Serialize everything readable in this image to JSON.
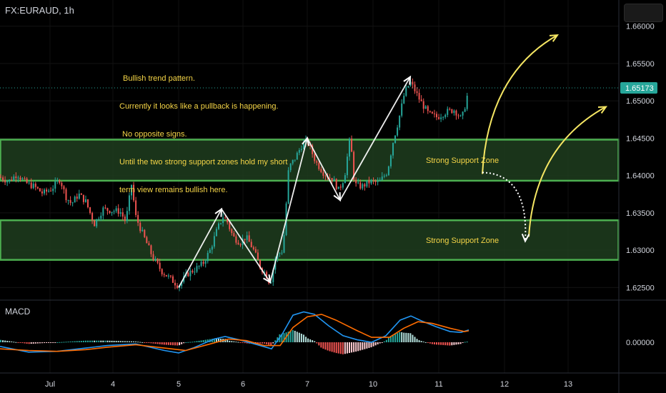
{
  "header": {
    "symbol": "FX:EURAUD, 1h"
  },
  "annotation": {
    "lines": [
      "Bullish trend pattern.",
      "Currently it looks like a pullback is happening.",
      "No opposite signs.",
      "Until the two strong support zones hold my short",
      "term view remains bullish here."
    ]
  },
  "chart_data": {
    "type": "candlestick",
    "symbol": "FX:EURAUD",
    "interval": "1h",
    "price_axis": {
      "ticks": [
        "1.66000",
        "1.65500",
        "1.65000",
        "1.64500",
        "1.64000",
        "1.63500",
        "1.63000",
        "1.62500"
      ],
      "range": [
        1.6235,
        1.6635
      ]
    },
    "last_price": "1.65173",
    "time_axis": {
      "labels": [
        "Jul",
        "4",
        "5",
        "6",
        "7",
        "10",
        "11",
        "12",
        "13"
      ]
    },
    "support_zones": [
      {
        "label": "Strong Support Zone",
        "from": 1.6393,
        "to": 1.6448
      },
      {
        "label": "Strong Support Zone",
        "from": 1.6287,
        "to": 1.634
      }
    ],
    "price_path": [
      [
        0,
        1.6398
      ],
      [
        12,
        1.6392
      ],
      [
        24,
        1.6402
      ],
      [
        36,
        1.639
      ],
      [
        48,
        1.6385
      ],
      [
        60,
        1.6376
      ],
      [
        72,
        1.6382
      ],
      [
        84,
        1.6395
      ],
      [
        92,
        1.6372
      ],
      [
        100,
        1.6362
      ],
      [
        110,
        1.6375
      ],
      [
        120,
        1.6365
      ],
      [
        132,
        1.6335
      ],
      [
        144,
        1.6355
      ],
      [
        156,
        1.6353
      ],
      [
        168,
        1.6352
      ],
      [
        176,
        1.6338
      ],
      [
        184,
        1.6388
      ],
      [
        190,
        1.6345
      ],
      [
        196,
        1.633
      ],
      [
        204,
        1.6312
      ],
      [
        214,
        1.629
      ],
      [
        226,
        1.6272
      ],
      [
        238,
        1.6262
      ],
      [
        250,
        1.6252
      ],
      [
        262,
        1.6268
      ],
      [
        274,
        1.6275
      ],
      [
        284,
        1.6282
      ],
      [
        294,
        1.63
      ],
      [
        304,
        1.6328
      ],
      [
        312,
        1.6345
      ],
      [
        318,
        1.6338
      ],
      [
        326,
        1.6318
      ],
      [
        336,
        1.631
      ],
      [
        344,
        1.6318
      ],
      [
        354,
        1.6302
      ],
      [
        364,
        1.6278
      ],
      [
        372,
        1.6268
      ],
      [
        378,
        1.6255
      ],
      [
        386,
        1.6292
      ],
      [
        396,
        1.63
      ],
      [
        404,
        1.641
      ],
      [
        414,
        1.6425
      ],
      [
        422,
        1.644
      ],
      [
        430,
        1.6446
      ],
      [
        442,
        1.6418
      ],
      [
        454,
        1.6402
      ],
      [
        466,
        1.6395
      ],
      [
        474,
        1.638
      ],
      [
        482,
        1.6398
      ],
      [
        490,
        1.6452
      ],
      [
        496,
        1.6388
      ],
      [
        506,
        1.6385
      ],
      [
        518,
        1.6392
      ],
      [
        530,
        1.639
      ],
      [
        542,
        1.6405
      ],
      [
        550,
        1.6445
      ],
      [
        558,
        1.6475
      ],
      [
        566,
        1.651
      ],
      [
        574,
        1.6525
      ],
      [
        580,
        1.6515
      ],
      [
        588,
        1.65
      ],
      [
        600,
        1.6482
      ],
      [
        612,
        1.6478
      ],
      [
        624,
        1.6485
      ],
      [
        636,
        1.6488
      ],
      [
        646,
        1.6475
      ],
      [
        652,
        1.6498
      ],
      [
        656,
        1.6517
      ]
    ],
    "zigzag": [
      [
        250,
        1.625
      ],
      [
        310,
        1.6355
      ],
      [
        378,
        1.6257
      ],
      [
        430,
        1.645
      ],
      [
        476,
        1.6367
      ],
      [
        574,
        1.6532
      ]
    ],
    "projection_arrows": [
      {
        "style": "solid",
        "from": [
          675,
          1.6402
        ],
        "to": [
          780,
          1.6588
        ]
      },
      {
        "style": "solid",
        "from": [
          740,
          1.6318
        ],
        "to": [
          848,
          1.6492
        ]
      },
      {
        "style": "dotted",
        "from": [
          675,
          1.6404
        ],
        "to": [
          735,
          1.6312
        ]
      }
    ],
    "macd": {
      "label": "MACD",
      "zero_label": "0.00000",
      "macd_line": [
        [
          0,
          -0.0005
        ],
        [
          40,
          -0.0012
        ],
        [
          80,
          -0.0011
        ],
        [
          120,
          -0.0007
        ],
        [
          150,
          -0.0004
        ],
        [
          190,
          -0.0002
        ],
        [
          230,
          -0.001
        ],
        [
          250,
          -0.0013
        ],
        [
          270,
          -0.0007
        ],
        [
          300,
          0.0004
        ],
        [
          315,
          0.0007
        ],
        [
          335,
          0.0003
        ],
        [
          360,
          -0.0003
        ],
        [
          380,
          -0.0008
        ],
        [
          395,
          0.001
        ],
        [
          410,
          0.0033
        ],
        [
          425,
          0.0037
        ],
        [
          440,
          0.0034
        ],
        [
          460,
          0.002
        ],
        [
          480,
          0.0008
        ],
        [
          500,
          0.0003
        ],
        [
          520,
          0.0
        ],
        [
          540,
          0.0008
        ],
        [
          560,
          0.0027
        ],
        [
          575,
          0.0032
        ],
        [
          590,
          0.0026
        ],
        [
          610,
          0.0019
        ],
        [
          630,
          0.0013
        ],
        [
          645,
          0.0012
        ],
        [
          656,
          0.0015
        ]
      ],
      "signal_line": [
        [
          0,
          -0.0008
        ],
        [
          40,
          -0.001
        ],
        [
          80,
          -0.0011
        ],
        [
          120,
          -0.0009
        ],
        [
          150,
          -0.0006
        ],
        [
          190,
          -0.0003
        ],
        [
          230,
          -0.0007
        ],
        [
          260,
          -0.001
        ],
        [
          290,
          -0.0003
        ],
        [
          320,
          0.0004
        ],
        [
          345,
          0.0002
        ],
        [
          370,
          -0.0004
        ],
        [
          392,
          -0.0004
        ],
        [
          410,
          0.0018
        ],
        [
          430,
          0.0031
        ],
        [
          450,
          0.0034
        ],
        [
          470,
          0.0027
        ],
        [
          500,
          0.0014
        ],
        [
          520,
          0.0006
        ],
        [
          545,
          0.0006
        ],
        [
          565,
          0.0017
        ],
        [
          585,
          0.0025
        ],
        [
          605,
          0.0023
        ],
        [
          630,
          0.0017
        ],
        [
          650,
          0.0013
        ],
        [
          656,
          0.0014
        ]
      ]
    },
    "colors": {
      "up": "#26a69a",
      "down": "#ef5350",
      "zone_fill": "#1f3d1f",
      "zone_border": "#4caf50",
      "annotation": "#f5d547",
      "zigzag": "#ffffff",
      "projection": "#f5e663",
      "macd_line": "#2196f3",
      "signal_line": "#ff6d00",
      "last_price_bg": "#26a69a"
    }
  }
}
